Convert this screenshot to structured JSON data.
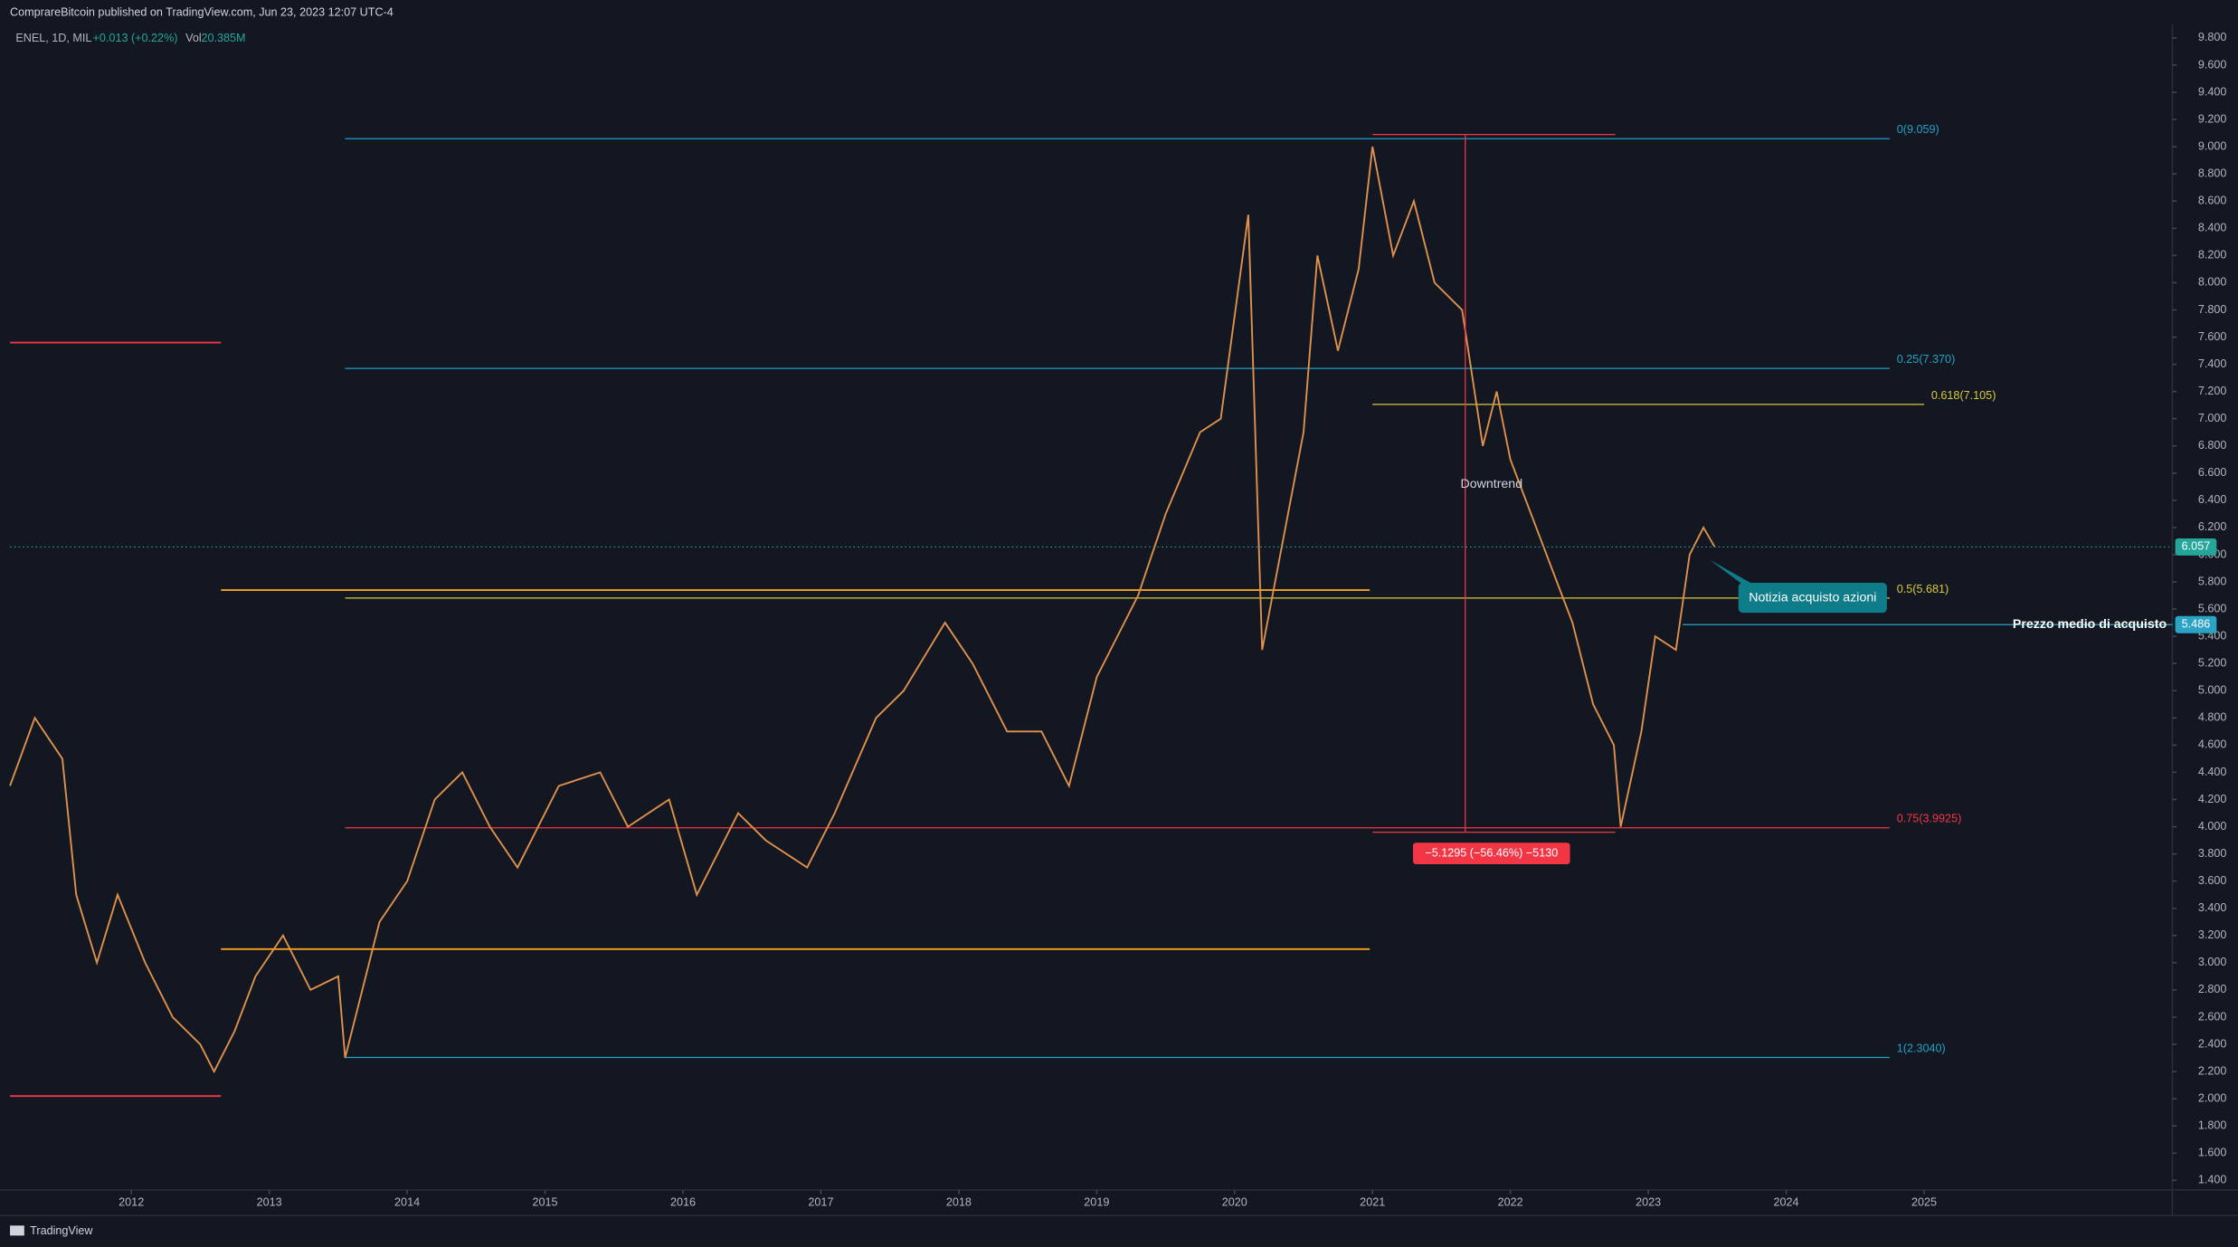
{
  "chart_data": {
    "type": "line",
    "header": "ComprareBitcoin published on TradingView.com, Jun 23, 2023 12:07 UTC-4",
    "symbol": "ENEL, 1D, MIL",
    "change": "+0.013 (+0.22%)",
    "volume_label": "Vol",
    "volume": "20.385M",
    "footer": "TradingView",
    "color": "#e0914b",
    "grid": false,
    "xlim": [
      2011.12,
      2026.8
    ],
    "xticks": [
      2012,
      2013,
      2014,
      2015,
      2016,
      2017,
      2018,
      2019,
      2020,
      2021,
      2022,
      2023,
      2024,
      2025
    ],
    "ylim": [
      1.33,
      9.9
    ],
    "yticks": [
      {
        "value": 1.4,
        "label": "1.400"
      },
      {
        "value": 1.6,
        "label": "1.600"
      },
      {
        "value": 1.8,
        "label": "1.800"
      },
      {
        "value": 2.0,
        "label": "2.000"
      },
      {
        "value": 2.2,
        "label": "2.200"
      },
      {
        "value": 2.4,
        "label": "2.400"
      },
      {
        "value": 2.6,
        "label": "2.600"
      },
      {
        "value": 2.8,
        "label": "2.800"
      },
      {
        "value": 3.0,
        "label": "3.000"
      },
      {
        "value": 3.2,
        "label": "3.200"
      },
      {
        "value": 3.4,
        "label": "3.400"
      },
      {
        "value": 3.6,
        "label": "3.600"
      },
      {
        "value": 3.8,
        "label": "3.800"
      },
      {
        "value": 4.0,
        "label": "4.000"
      },
      {
        "value": 4.2,
        "label": "4.200"
      },
      {
        "value": 4.4,
        "label": "4.400"
      },
      {
        "value": 4.6,
        "label": "4.600"
      },
      {
        "value": 4.8,
        "label": "4.800"
      },
      {
        "value": 5.0,
        "label": "5.000"
      },
      {
        "value": 5.2,
        "label": "5.200"
      },
      {
        "value": 5.4,
        "label": "5.400"
      },
      {
        "value": 5.6,
        "label": "5.600"
      },
      {
        "value": 5.8,
        "label": "5.800"
      },
      {
        "value": 6.0,
        "label": "6.000"
      },
      {
        "value": 6.2,
        "label": "6.200"
      },
      {
        "value": 6.4,
        "label": "6.400"
      },
      {
        "value": 6.6,
        "label": "6.600"
      },
      {
        "value": 6.8,
        "label": "6.800"
      },
      {
        "value": 7.0,
        "label": "7.000"
      },
      {
        "value": 7.2,
        "label": "7.200"
      },
      {
        "value": 7.4,
        "label": "7.400"
      },
      {
        "value": 7.6,
        "label": "7.600"
      },
      {
        "value": 7.8,
        "label": "7.800"
      },
      {
        "value": 8.0,
        "label": "8.000"
      },
      {
        "value": 8.2,
        "label": "8.200"
      },
      {
        "value": 8.4,
        "label": "8.400"
      },
      {
        "value": 8.6,
        "label": "8.600"
      },
      {
        "value": 8.8,
        "label": "8.800"
      },
      {
        "value": 9.0,
        "label": "9.000"
      },
      {
        "value": 9.2,
        "label": "9.200"
      },
      {
        "value": 9.4,
        "label": "9.400"
      },
      {
        "value": 9.6,
        "label": "9.600"
      },
      {
        "value": 9.8,
        "label": "9.800"
      }
    ],
    "x": [
      2011.12,
      2011.3,
      2011.5,
      2011.6,
      2011.75,
      2011.9,
      2012.1,
      2012.3,
      2012.5,
      2012.6,
      2012.75,
      2012.9,
      2013.1,
      2013.3,
      2013.5,
      2013.55,
      2013.8,
      2014.0,
      2014.2,
      2014.4,
      2014.6,
      2014.8,
      2015.1,
      2015.4,
      2015.6,
      2015.9,
      2016.1,
      2016.4,
      2016.6,
      2016.9,
      2017.1,
      2017.4,
      2017.6,
      2017.9,
      2018.1,
      2018.35,
      2018.6,
      2018.8,
      2019.0,
      2019.3,
      2019.5,
      2019.75,
      2019.9,
      2020.1,
      2020.2,
      2020.35,
      2020.5,
      2020.6,
      2020.75,
      2020.9,
      2021.0,
      2021.15,
      2021.3,
      2021.45,
      2021.65,
      2021.8,
      2021.9,
      2022.0,
      2022.15,
      2022.3,
      2022.45,
      2022.6,
      2022.75,
      2022.8,
      2022.95,
      2023.05,
      2023.2,
      2023.3,
      2023.4,
      2023.48
    ],
    "values": [
      4.3,
      4.8,
      4.5,
      3.5,
      3.0,
      3.5,
      3.0,
      2.6,
      2.4,
      2.2,
      2.5,
      2.9,
      3.2,
      2.8,
      2.9,
      2.3,
      3.3,
      3.6,
      4.2,
      4.4,
      4.0,
      3.7,
      4.3,
      4.4,
      4.0,
      4.2,
      3.5,
      4.1,
      3.9,
      3.7,
      4.1,
      4.8,
      5.0,
      5.5,
      5.2,
      4.7,
      4.7,
      4.3,
      5.1,
      5.7,
      6.3,
      6.9,
      7.0,
      8.5,
      5.3,
      6.1,
      6.9,
      8.2,
      7.5,
      8.1,
      9.0,
      8.2,
      8.6,
      8.0,
      7.8,
      6.8,
      7.2,
      6.7,
      6.3,
      5.9,
      5.5,
      4.9,
      4.6,
      4.0,
      4.7,
      5.4,
      5.3,
      6.0,
      6.2,
      6.06
    ],
    "fib_levels": [
      {
        "label": "0(9.059)",
        "value": 9.059,
        "color": "#22a2c4",
        "start": 2013.55,
        "end": 2024.75
      },
      {
        "label": "0.25(7.370)",
        "value": 7.37,
        "color": "#22a2c4",
        "start": 2013.55,
        "end": 2024.75
      },
      {
        "label": "0.618(7.105)",
        "value": 7.105,
        "color": "#d8c93a",
        "start": 2021.0,
        "end": 2025.0
      },
      {
        "label": "0.5(5.681)",
        "value": 5.681,
        "color": "#d8c93a",
        "start": 2013.55,
        "end": 2024.75
      },
      {
        "label": "0.75(3.9925)",
        "value": 3.9925,
        "color": "#f23645",
        "start": 2013.55,
        "end": 2024.75
      },
      {
        "label": "1(2.3040)",
        "value": 2.304,
        "color": "#22a2c4",
        "start": 2013.55,
        "end": 2024.75
      }
    ],
    "lines": [
      {
        "value": 5.74,
        "color": "#f7a21b",
        "start": 2012.65,
        "end": 2020.98
      },
      {
        "value": 3.1,
        "color": "#f7a21b",
        "start": 2012.65,
        "end": 2020.98
      },
      {
        "value": 7.56,
        "color": "#f23645",
        "start": 2011.12,
        "end": 2012.65
      },
      {
        "value": 2.02,
        "color": "#f23645",
        "start": 2011.12,
        "end": 2012.65
      }
    ],
    "last_price": 6.057,
    "avg_price": {
      "label": "Prezzo medio di acquisto",
      "value": 5.486
    },
    "annotation": "Downtrend",
    "callout": "Notizia acquisto azioni",
    "measure": {
      "label": "−5.1295 (−56.46%) −5130",
      "from": 9.09,
      "to": 3.96
    }
  }
}
